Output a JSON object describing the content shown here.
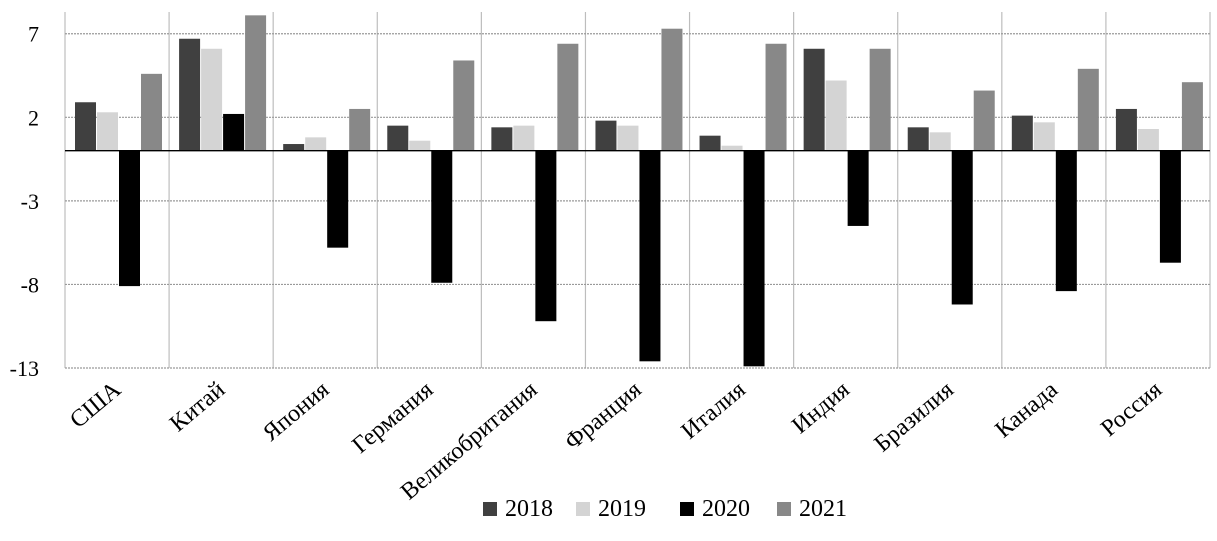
{
  "chart_data": {
    "type": "bar",
    "title": "",
    "xlabel": "",
    "ylabel": "",
    "categories": [
      "США",
      "Китай",
      "Япония",
      "Германия",
      "Великобритания",
      "Франция",
      "Италия",
      "Индия",
      "Бразилия",
      "Канада",
      "Россия"
    ],
    "series": [
      {
        "name": "2018",
        "color": "#404040",
        "values": [
          2.9,
          6.7,
          0.4,
          1.5,
          1.4,
          1.8,
          0.9,
          6.1,
          1.4,
          2.1,
          2.5
        ]
      },
      {
        "name": "2019",
        "color": "#d4d4d4",
        "values": [
          2.3,
          6.1,
          0.8,
          0.6,
          1.5,
          1.5,
          0.3,
          4.2,
          1.1,
          1.7,
          1.3
        ]
      },
      {
        "name": "2020",
        "color": "#000000",
        "values": [
          -8.1,
          2.2,
          -5.8,
          -7.9,
          -10.2,
          -12.6,
          -12.9,
          -4.5,
          -9.2,
          -8.4,
          -6.7
        ]
      },
      {
        "name": "2021",
        "color": "#888888",
        "values": [
          4.6,
          8.1,
          2.5,
          5.4,
          6.4,
          7.3,
          6.4,
          6.1,
          3.6,
          4.9,
          4.1
        ]
      }
    ],
    "ylim": [
      -13,
      7
    ],
    "yticks": [
      "7",
      "2",
      "-3",
      "-8",
      "-13"
    ],
    "grid": true,
    "legend_position": "bottom"
  }
}
